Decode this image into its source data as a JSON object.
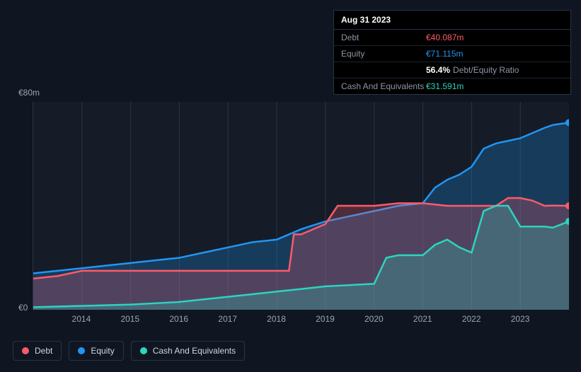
{
  "tooltip": {
    "date": "Aug 31 2023",
    "rows": [
      {
        "label": "Debt",
        "value": "€40.087m",
        "cls": "debt"
      },
      {
        "label": "Equity",
        "value": "€71.115m",
        "cls": "equity"
      },
      {
        "label": "",
        "pct": "56.4%",
        "ratio_label": "Debt/Equity Ratio",
        "cls": "ratio"
      },
      {
        "label": "Cash And Equivalents",
        "value": "€31.591m",
        "cls": "cash"
      }
    ]
  },
  "chart": {
    "type": "line-area",
    "background_color": "#151c28",
    "grid_color": "#2a3444",
    "axis_text_color": "#9aa5b5",
    "font_size": 12,
    "y": {
      "min": 0,
      "max": 80,
      "ticks": [
        {
          "v": 0,
          "label": "€0"
        },
        {
          "v": 80,
          "label": "€80m"
        }
      ]
    },
    "x": {
      "min": 2013,
      "max": 2024,
      "ticks": [
        2014,
        2015,
        2016,
        2017,
        2018,
        2019,
        2020,
        2021,
        2022,
        2023
      ]
    },
    "series": [
      {
        "key": "equity",
        "label": "Equity",
        "color": "#2196f3",
        "fill": true,
        "points": [
          [
            2013.0,
            14
          ],
          [
            2013.5,
            15
          ],
          [
            2014.0,
            16
          ],
          [
            2014.5,
            17
          ],
          [
            2015.0,
            18
          ],
          [
            2015.5,
            19
          ],
          [
            2016.0,
            20
          ],
          [
            2016.5,
            22
          ],
          [
            2017.0,
            24
          ],
          [
            2017.5,
            26
          ],
          [
            2018.0,
            27
          ],
          [
            2018.25,
            29
          ],
          [
            2018.5,
            31
          ],
          [
            2019.0,
            34
          ],
          [
            2019.5,
            36
          ],
          [
            2020.0,
            38
          ],
          [
            2020.5,
            40
          ],
          [
            2021.0,
            41
          ],
          [
            2021.25,
            47
          ],
          [
            2021.5,
            50
          ],
          [
            2021.75,
            52
          ],
          [
            2022.0,
            55
          ],
          [
            2022.25,
            62
          ],
          [
            2022.5,
            64
          ],
          [
            2022.75,
            65
          ],
          [
            2023.0,
            66
          ],
          [
            2023.5,
            70
          ],
          [
            2023.667,
            71.1
          ],
          [
            2024.0,
            72
          ]
        ]
      },
      {
        "key": "debt",
        "label": "Debt",
        "color": "#ff5a6a",
        "fill": true,
        "points": [
          [
            2013.0,
            12
          ],
          [
            2013.5,
            13
          ],
          [
            2014.0,
            15
          ],
          [
            2014.5,
            15
          ],
          [
            2015.0,
            15
          ],
          [
            2015.5,
            15
          ],
          [
            2016.0,
            15
          ],
          [
            2016.5,
            15
          ],
          [
            2017.0,
            15
          ],
          [
            2017.5,
            15
          ],
          [
            2018.0,
            15
          ],
          [
            2018.25,
            15
          ],
          [
            2018.35,
            29
          ],
          [
            2018.5,
            29
          ],
          [
            2019.0,
            33
          ],
          [
            2019.25,
            40
          ],
          [
            2019.5,
            40
          ],
          [
            2020.0,
            40
          ],
          [
            2020.5,
            41
          ],
          [
            2021.0,
            41
          ],
          [
            2021.5,
            40
          ],
          [
            2022.0,
            40
          ],
          [
            2022.5,
            40
          ],
          [
            2022.75,
            43
          ],
          [
            2023.0,
            43
          ],
          [
            2023.25,
            42
          ],
          [
            2023.5,
            40
          ],
          [
            2023.667,
            40.1
          ],
          [
            2024.0,
            40
          ]
        ]
      },
      {
        "key": "cash",
        "label": "Cash And Equivalents",
        "color": "#2dd4bf",
        "fill": true,
        "points": [
          [
            2013.0,
            1
          ],
          [
            2014.0,
            1.5
          ],
          [
            2015.0,
            2
          ],
          [
            2015.5,
            2.5
          ],
          [
            2016.0,
            3
          ],
          [
            2016.5,
            4
          ],
          [
            2017.0,
            5
          ],
          [
            2017.5,
            6
          ],
          [
            2018.0,
            7
          ],
          [
            2018.5,
            8
          ],
          [
            2019.0,
            9
          ],
          [
            2019.5,
            9.5
          ],
          [
            2020.0,
            10
          ],
          [
            2020.25,
            20
          ],
          [
            2020.5,
            21
          ],
          [
            2021.0,
            21
          ],
          [
            2021.25,
            25
          ],
          [
            2021.5,
            27
          ],
          [
            2021.75,
            24
          ],
          [
            2022.0,
            22
          ],
          [
            2022.25,
            38
          ],
          [
            2022.5,
            40
          ],
          [
            2022.75,
            40
          ],
          [
            2023.0,
            32
          ],
          [
            2023.5,
            32
          ],
          [
            2023.667,
            31.6
          ],
          [
            2024.0,
            34
          ]
        ]
      }
    ],
    "legend": [
      {
        "key": "debt",
        "label": "Debt",
        "color": "#ff5a6a"
      },
      {
        "key": "equity",
        "label": "Equity",
        "color": "#2196f3"
      },
      {
        "key": "cash",
        "label": "Cash And Equivalents",
        "color": "#2dd4bf"
      }
    ]
  }
}
